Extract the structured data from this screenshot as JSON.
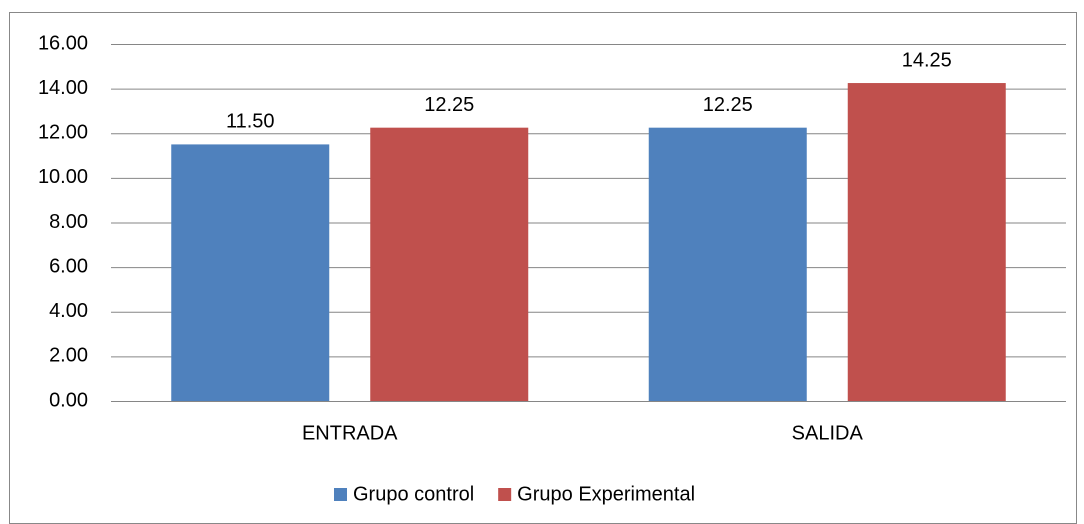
{
  "chart_data": {
    "type": "bar",
    "categories": [
      "ENTRADA",
      "SALIDA"
    ],
    "series": [
      {
        "name": "Grupo control",
        "color": "#4f81bd",
        "values": [
          11.5,
          12.25
        ],
        "value_labels": [
          "11.50",
          "12.25"
        ]
      },
      {
        "name": "Grupo Experimental",
        "color": "#c0504d",
        "values": [
          12.25,
          14.25
        ],
        "value_labels": [
          "12.25",
          "14.25"
        ]
      }
    ],
    "ylim": [
      0,
      16
    ],
    "yticks": [
      {
        "value": 0,
        "label": "0.00"
      },
      {
        "value": 2,
        "label": "2.00"
      },
      {
        "value": 4,
        "label": "4.00"
      },
      {
        "value": 6,
        "label": "6.00"
      },
      {
        "value": 8,
        "label": "8.00"
      },
      {
        "value": 10,
        "label": "10.00"
      },
      {
        "value": 12,
        "label": "12.00"
      },
      {
        "value": 14,
        "label": "14.00"
      },
      {
        "value": 16,
        "label": "16.00"
      }
    ],
    "grid": true,
    "legend": "bottom"
  }
}
